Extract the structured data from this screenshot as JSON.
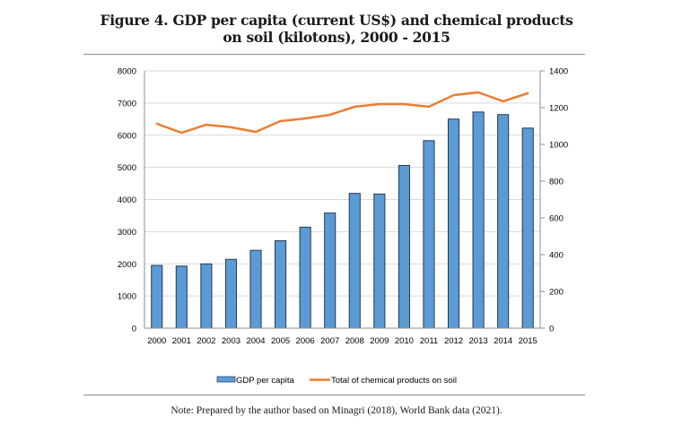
{
  "figure": {
    "title_line1": "Figure 4. GDP per capita (current US$) and chemical products",
    "title_line2": "on soil (kilotons), 2000 - 2015",
    "note": "Note: Prepared by the author based on Minagri (2018), World Bank data (2021)."
  },
  "chart_data": {
    "type": "bar",
    "title": "Figure 4. GDP per capita (current US$) and chemical products on soil (kilotons), 2000 - 2015",
    "categories": [
      "2000",
      "2001",
      "2002",
      "2003",
      "2004",
      "2005",
      "2006",
      "2007",
      "2008",
      "2009",
      "2010",
      "2011",
      "2012",
      "2013",
      "2014",
      "2015"
    ],
    "series": [
      {
        "name": "GDP per capita",
        "type": "bar",
        "axis": "left",
        "color": "#5B9BD5",
        "values": [
          1950,
          1930,
          2000,
          2140,
          2420,
          2720,
          3140,
          3580,
          4190,
          4170,
          5060,
          5830,
          6500,
          6720,
          6640,
          6220
        ]
      },
      {
        "name": "Total of chemical products on soil",
        "type": "line",
        "axis": "right",
        "color": "#ED7D31",
        "values": [
          1112,
          1063,
          1107,
          1093,
          1068,
          1127,
          1141,
          1161,
          1205,
          1219,
          1219,
          1205,
          1268,
          1283,
          1234,
          1278
        ]
      }
    ],
    "y_left": {
      "min": 0,
      "max": 8000,
      "step": 1000,
      "ticks": [
        "0",
        "1000",
        "2000",
        "3000",
        "4000",
        "5000",
        "6000",
        "7000",
        "8000"
      ]
    },
    "y_right": {
      "min": 0,
      "max": 1400,
      "step": 200,
      "ticks": [
        "0",
        "200",
        "400",
        "600",
        "800",
        "1000",
        "1200",
        "1400"
      ]
    },
    "xlabel": "",
    "ylabel_left": "",
    "ylabel_right": "",
    "grid": true,
    "legend": {
      "position": "bottom",
      "entries": [
        "GDP per capita",
        "Total of chemical products on soil"
      ]
    }
  }
}
